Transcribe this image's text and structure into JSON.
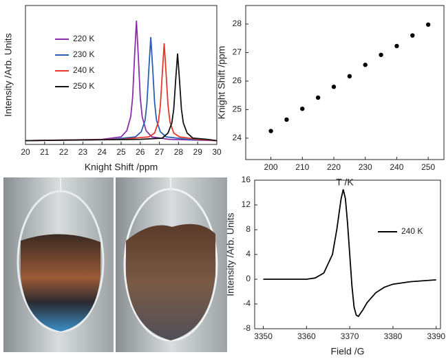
{
  "chart_data": [
    {
      "type": "line",
      "x_label": "Knight Shift /ppm",
      "y_label": "Intensity  /Arb. Units",
      "xlim": [
        20,
        30
      ],
      "xticks": [
        20,
        21,
        22,
        23,
        24,
        25,
        26,
        27,
        28,
        29,
        30
      ],
      "ylim": [
        0,
        1.1
      ],
      "series": [
        {
          "name": "220 K",
          "color": "#8b2fa8",
          "x": [
            20,
            24,
            25,
            25.3,
            25.5,
            25.6,
            25.7,
            25.8,
            25.9,
            26,
            26.1,
            26.3,
            26.6,
            27.5,
            30
          ],
          "values": [
            0.03,
            0.04,
            0.06,
            0.11,
            0.22,
            0.37,
            0.69,
            0.98,
            0.69,
            0.37,
            0.22,
            0.11,
            0.06,
            0.04,
            0.03
          ]
        },
        {
          "name": "230 K",
          "color": "#2a5db0",
          "x": [
            20,
            24.5,
            25.75,
            26.05,
            26.25,
            26.35,
            26.45,
            26.55,
            26.65,
            26.75,
            26.85,
            27.05,
            27.35,
            28.5,
            30
          ],
          "values": [
            0.03,
            0.04,
            0.06,
            0.1,
            0.19,
            0.33,
            0.6,
            0.85,
            0.6,
            0.33,
            0.19,
            0.1,
            0.06,
            0.04,
            0.03
          ]
        },
        {
          "name": "240 K",
          "color": "#e8352a",
          "x": [
            20,
            25,
            26.45,
            26.75,
            26.95,
            27.05,
            27.15,
            27.25,
            27.35,
            27.45,
            27.55,
            27.75,
            28.05,
            29,
            30
          ],
          "values": [
            0.03,
            0.04,
            0.06,
            0.09,
            0.18,
            0.31,
            0.56,
            0.8,
            0.56,
            0.31,
            0.18,
            0.09,
            0.06,
            0.04,
            0.03
          ]
        },
        {
          "name": "250 K",
          "color": "#111111",
          "x": [
            20,
            26,
            27.15,
            27.45,
            27.65,
            27.75,
            27.85,
            27.95,
            28.05,
            28.15,
            28.25,
            28.45,
            28.75,
            29.5,
            30
          ],
          "values": [
            0.03,
            0.04,
            0.05,
            0.09,
            0.17,
            0.28,
            0.51,
            0.72,
            0.51,
            0.28,
            0.17,
            0.09,
            0.05,
            0.04,
            0.03
          ]
        }
      ]
    },
    {
      "type": "scatter",
      "x_label": "T /K",
      "y_label": "Knight Shift /ppm",
      "color": "#000000",
      "x": [
        200,
        205,
        210,
        215,
        220,
        225,
        230,
        235,
        240,
        245,
        250
      ],
      "values": [
        24.25,
        24.65,
        25.03,
        25.42,
        25.8,
        26.17,
        26.57,
        26.92,
        27.23,
        27.6,
        27.98
      ],
      "xlim": [
        192,
        255
      ],
      "xticks": [
        200,
        210,
        220,
        230,
        240,
        250
      ],
      "ylim": [
        23.25,
        28.65
      ],
      "yticks": [
        24,
        25,
        26,
        27,
        28
      ]
    },
    {
      "type": "line",
      "x_label": "Field /G",
      "y_label": "Intensity  /Arb. Units",
      "xlim": [
        3348,
        3391
      ],
      "xticks": [
        3350,
        3360,
        3370,
        3380,
        3390
      ],
      "ylim": [
        -8,
        16
      ],
      "yticks": [
        -8,
        -4,
        0,
        4,
        8,
        12,
        16
      ],
      "x": [
        3350,
        3355,
        3360,
        3362,
        3364,
        3366,
        3367,
        3368,
        3368.5,
        3369,
        3369.5,
        3370,
        3370.5,
        3371,
        3371.5,
        3372,
        3373,
        3374,
        3376,
        3378,
        3380,
        3384,
        3390
      ],
      "series": [
        {
          "name": "240 K",
          "color": "#000000",
          "values": [
            0,
            0,
            0,
            0.2,
            1,
            4,
            8,
            13,
            14.5,
            13,
            9,
            4,
            -1,
            -4.5,
            -5.8,
            -6,
            -5,
            -3.8,
            -2.2,
            -1.3,
            -0.8,
            -0.4,
            -0.1
          ]
        }
      ]
    }
  ]
}
